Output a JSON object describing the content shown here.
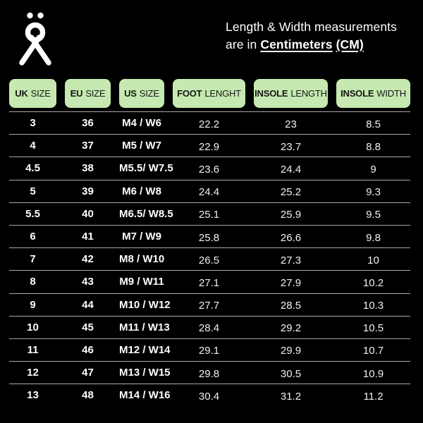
{
  "icons": {
    "brand_logo": "stick-figure-person-icon"
  },
  "header": {
    "line1": "Length & Width measurements",
    "line2_prefix": "are in ",
    "line2_em1": "Centimeters",
    "line2_sep": " ",
    "line2_em2": "(CM)"
  },
  "colors": {
    "background": "#000000",
    "header_cell_bg": "#c5e9b1",
    "header_cell_text": "#161616",
    "row_text": "#ffffff",
    "divider": "#a9a9a9"
  },
  "chart_data": {
    "type": "table",
    "title": "Length & Width measurements are in Centimeters (CM)",
    "columns": [
      {
        "strong": "UK",
        "normal": "SIZE"
      },
      {
        "strong": "EU",
        "normal": "SIZE"
      },
      {
        "strong": "US",
        "normal": "SIZE"
      },
      {
        "strong": "FOOT",
        "normal": "LENGHT"
      },
      {
        "strong": "INSOLE",
        "normal": "LENGTH"
      },
      {
        "strong": "INSOLE",
        "normal": "WIDTH"
      }
    ],
    "rows": [
      [
        "3",
        "36",
        "M4 / W6",
        "22.2",
        "23",
        "8.5"
      ],
      [
        "4",
        "37",
        "M5 / W7",
        "22.9",
        "23.7",
        "8.8"
      ],
      [
        "4.5",
        "38",
        "M5.5/ W7.5",
        "23.6",
        "24.4",
        "9"
      ],
      [
        "5",
        "39",
        "M6 / W8",
        "24.4",
        "25.2",
        "9.3"
      ],
      [
        "5.5",
        "40",
        "M6.5/ W8.5",
        "25.1",
        "25.9",
        "9.5"
      ],
      [
        "6",
        "41",
        "M7 / W9",
        "25.8",
        "26.6",
        "9.8"
      ],
      [
        "7",
        "42",
        "M8 / W10",
        "26.5",
        "27.3",
        "10"
      ],
      [
        "8",
        "43",
        "M9 / W11",
        "27.1",
        "27.9",
        "10.2"
      ],
      [
        "9",
        "44",
        "M10 / W12",
        "27.7",
        "28.5",
        "10.3"
      ],
      [
        "10",
        "45",
        "M11 / W13",
        "28.4",
        "29.2",
        "10.5"
      ],
      [
        "11",
        "46",
        "M12 / W14",
        "29.1",
        "29.9",
        "10.7"
      ],
      [
        "12",
        "47",
        "M13 / W15",
        "29.8",
        "30.5",
        "10.9"
      ],
      [
        "13",
        "48",
        "M14 / W16",
        "30.4",
        "31.2",
        "11.2"
      ]
    ]
  }
}
